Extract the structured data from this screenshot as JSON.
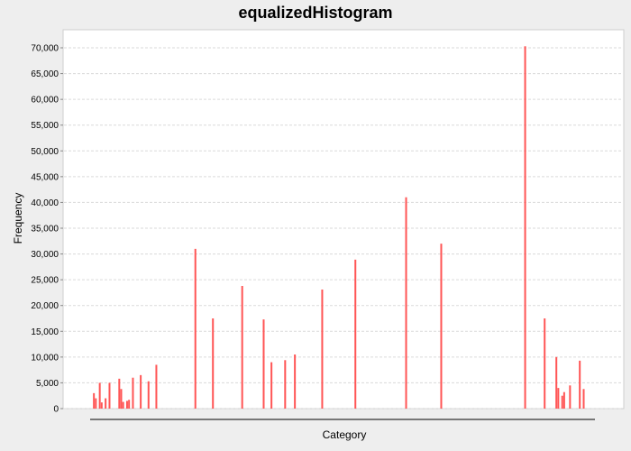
{
  "chart_data": {
    "type": "bar",
    "title": "equalizedHistogram",
    "xlabel": "Category",
    "ylabel": "Frequency",
    "ylim": [
      0,
      73500
    ],
    "yticks": [
      0,
      5000,
      10000,
      15000,
      20000,
      25000,
      30000,
      35000,
      40000,
      45000,
      50000,
      55000,
      60000,
      65000,
      70000
    ],
    "ytick_labels": [
      "0",
      "5,000",
      "10,000",
      "15,000",
      "20,000",
      "25,000",
      "30,000",
      "35,000",
      "40,000",
      "45,000",
      "50,000",
      "55,000",
      "60,000",
      "65,000",
      "70,000"
    ],
    "grid": true,
    "bar_color": "#ff5555",
    "plot_background": "#ffffff",
    "page_background": "#eeeeee",
    "category_count": 256,
    "bars": [
      {
        "index": 1,
        "value": 3000
      },
      {
        "index": 2,
        "value": 2000
      },
      {
        "index": 4,
        "value": 5000
      },
      {
        "index": 5,
        "value": 1200
      },
      {
        "index": 7,
        "value": 2000
      },
      {
        "index": 9,
        "value": 5000
      },
      {
        "index": 14,
        "value": 5800
      },
      {
        "index": 15,
        "value": 3800
      },
      {
        "index": 16,
        "value": 1300
      },
      {
        "index": 18,
        "value": 1500
      },
      {
        "index": 19,
        "value": 1700
      },
      {
        "index": 21,
        "value": 6000
      },
      {
        "index": 25,
        "value": 6500
      },
      {
        "index": 29,
        "value": 5300
      },
      {
        "index": 33,
        "value": 8500
      },
      {
        "index": 53,
        "value": 31000
      },
      {
        "index": 62,
        "value": 17500
      },
      {
        "index": 77,
        "value": 23800
      },
      {
        "index": 88,
        "value": 17300
      },
      {
        "index": 92,
        "value": 9000
      },
      {
        "index": 99,
        "value": 9400
      },
      {
        "index": 104,
        "value": 10500
      },
      {
        "index": 118,
        "value": 23100
      },
      {
        "index": 135,
        "value": 28900
      },
      {
        "index": 161,
        "value": 41000
      },
      {
        "index": 179,
        "value": 32000
      },
      {
        "index": 222,
        "value": 70300
      },
      {
        "index": 232,
        "value": 17500
      },
      {
        "index": 238,
        "value": 10000
      },
      {
        "index": 239,
        "value": 4000
      },
      {
        "index": 241,
        "value": 2500
      },
      {
        "index": 242,
        "value": 3200
      },
      {
        "index": 245,
        "value": 4500
      },
      {
        "index": 250,
        "value": 9300
      },
      {
        "index": 252,
        "value": 3800
      }
    ]
  }
}
